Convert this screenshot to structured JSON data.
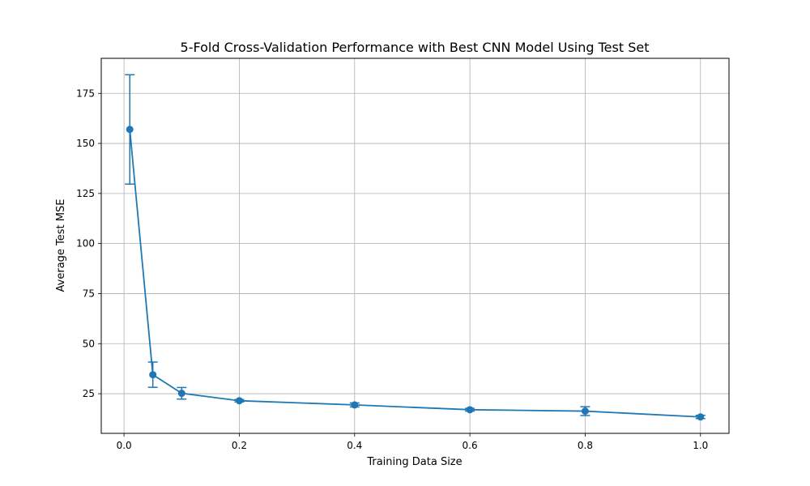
{
  "chart_data": {
    "type": "line",
    "title": "5-Fold Cross-Validation Performance with Best CNN Model Using Test Set",
    "xlabel": "Training Data Size",
    "ylabel": "Average Test MSE",
    "xlim": [
      -0.0395,
      1.0495
    ],
    "ylim": [
      5.2,
      192.5
    ],
    "xticks": [
      0.0,
      0.2,
      0.4,
      0.6,
      0.8,
      1.0
    ],
    "xtick_labels": [
      "0.0",
      "0.2",
      "0.4",
      "0.6",
      "0.8",
      "1.0"
    ],
    "yticks": [
      25,
      50,
      75,
      100,
      125,
      150,
      175
    ],
    "ytick_labels": [
      "25",
      "50",
      "75",
      "100",
      "125",
      "150",
      "175"
    ],
    "grid": true,
    "line_color": "#1f77b4",
    "series": [
      {
        "x": [
          0.01,
          0.05,
          0.1,
          0.2,
          0.4,
          0.6,
          0.8,
          1.0
        ],
        "y": [
          157.0,
          34.5,
          25.2,
          21.5,
          19.4,
          17.0,
          16.3,
          13.4
        ],
        "yerr": [
          27.3,
          6.3,
          2.9,
          0.6,
          1.0,
          0.7,
          2.2,
          0.8
        ]
      }
    ]
  }
}
